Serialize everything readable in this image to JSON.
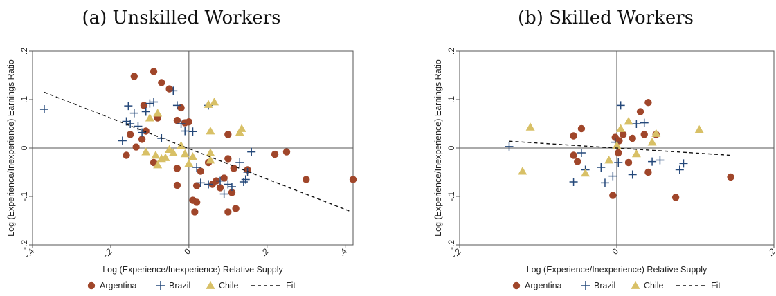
{
  "colors": {
    "argentina": "#a0462a",
    "brazil": "#24487a",
    "chile": "#d8c066",
    "fit": "#111111",
    "axis": "#555555"
  },
  "chart_data": [
    {
      "type": "scatter",
      "title": "(a) Unskilled Workers",
      "xlabel": "Log (Experience/Inexperience) Relative Supply",
      "ylabel": "Log (Experience/Inexperience) Earnings Ratio",
      "xlim": [
        -0.4,
        0.42
      ],
      "ylim": [
        -0.2,
        0.2
      ],
      "xticks": [
        -0.4,
        -0.2,
        0,
        0.2,
        0.4
      ],
      "xtick_labels": [
        "-.4",
        "-.2",
        "0",
        ".2",
        ".4"
      ],
      "yticks": [
        -0.2,
        -0.1,
        0,
        0.1,
        0.2
      ],
      "ytick_labels": [
        "-.2",
        "-.1",
        "0",
        ".1",
        ".2"
      ],
      "grid": false,
      "legend_position": "bottom",
      "series": [
        {
          "name": "Argentina",
          "marker": "circle",
          "points": [
            [
              -0.16,
              -0.015
            ],
            [
              -0.15,
              0.028
            ],
            [
              -0.14,
              0.148
            ],
            [
              -0.135,
              0.002
            ],
            [
              -0.12,
              0.018
            ],
            [
              -0.115,
              0.088
            ],
            [
              -0.11,
              0.035
            ],
            [
              -0.09,
              0.158
            ],
            [
              -0.09,
              -0.03
            ],
            [
              -0.08,
              0.062
            ],
            [
              -0.07,
              0.135
            ],
            [
              -0.05,
              0.122
            ],
            [
              -0.03,
              0.057
            ],
            [
              -0.03,
              -0.042
            ],
            [
              -0.03,
              -0.077
            ],
            [
              -0.02,
              0.083
            ],
            [
              -0.01,
              0.052
            ],
            [
              0,
              0.054
            ],
            [
              0.01,
              -0.108
            ],
            [
              0.015,
              -0.132
            ],
            [
              0.02,
              -0.112
            ],
            [
              0.02,
              -0.078
            ],
            [
              0.03,
              -0.048
            ],
            [
              0.05,
              -0.03
            ],
            [
              0.06,
              -0.075
            ],
            [
              0.07,
              -0.068
            ],
            [
              0.08,
              -0.082
            ],
            [
              0.09,
              -0.062
            ],
            [
              0.1,
              -0.132
            ],
            [
              0.1,
              -0.022
            ],
            [
              0.1,
              0.028
            ],
            [
              0.11,
              -0.092
            ],
            [
              0.115,
              -0.042
            ],
            [
              0.12,
              -0.125
            ],
            [
              0.15,
              -0.045
            ],
            [
              0.22,
              -0.013
            ],
            [
              0.25,
              -0.008
            ],
            [
              0.3,
              -0.065
            ],
            [
              0.42,
              -0.065
            ]
          ]
        },
        {
          "name": "Brazil",
          "marker": "plus",
          "points": [
            [
              -0.37,
              0.08
            ],
            [
              -0.17,
              0.015
            ],
            [
              -0.16,
              0.055
            ],
            [
              -0.155,
              0.087
            ],
            [
              -0.15,
              0.05
            ],
            [
              -0.14,
              0.072
            ],
            [
              -0.13,
              0.045
            ],
            [
              -0.12,
              0.032
            ],
            [
              -0.11,
              0.075
            ],
            [
              -0.1,
              0.092
            ],
            [
              -0.09,
              0.095
            ],
            [
              -0.07,
              0.02
            ],
            [
              -0.04,
              0.118
            ],
            [
              -0.03,
              0.088
            ],
            [
              -0.02,
              0.05
            ],
            [
              -0.01,
              0.035
            ],
            [
              0.01,
              0.034
            ],
            [
              0.02,
              -0.04
            ],
            [
              0.03,
              -0.072
            ],
            [
              0.05,
              -0.075
            ],
            [
              0.08,
              -0.068
            ],
            [
              0.09,
              -0.095
            ],
            [
              0.1,
              -0.075
            ],
            [
              0.11,
              -0.08
            ],
            [
              0.13,
              -0.03
            ],
            [
              0.14,
              -0.07
            ],
            [
              0.145,
              -0.065
            ],
            [
              0.15,
              -0.05
            ],
            [
              0.16,
              -0.008
            ],
            [
              0.05,
              0.088
            ]
          ]
        },
        {
          "name": "Chile",
          "marker": "triangle",
          "points": [
            [
              -0.11,
              -0.008
            ],
            [
              -0.1,
              0.062
            ],
            [
              -0.085,
              -0.015
            ],
            [
              -0.08,
              0.072
            ],
            [
              -0.08,
              -0.035
            ],
            [
              -0.07,
              -0.022
            ],
            [
              -0.06,
              -0.02
            ],
            [
              -0.05,
              -0.003
            ],
            [
              -0.04,
              -0.01
            ],
            [
              -0.02,
              0.005
            ],
            [
              -0.01,
              -0.012
            ],
            [
              0,
              -0.032
            ],
            [
              0.01,
              -0.018
            ],
            [
              0.05,
              0.09
            ],
            [
              0.055,
              -0.01
            ],
            [
              0.055,
              -0.025
            ],
            [
              0.055,
              0.035
            ],
            [
              0.065,
              0.095
            ],
            [
              0.13,
              0.032
            ],
            [
              0.135,
              0.04
            ]
          ]
        }
      ],
      "fit": {
        "name": "Fit",
        "style": "dashed",
        "x": [
          -0.37,
          0.41
        ],
        "y": [
          0.115,
          -0.13
        ]
      }
    },
    {
      "type": "scatter",
      "title": "(b) Skilled Workers",
      "xlabel": "Log (Experience/Inexperience) Relative Supply",
      "ylabel": "Log (Experience/Inexperience) Earnings Ratio",
      "xlim": [
        -0.2,
        0.2
      ],
      "ylim": [
        -0.2,
        0.2
      ],
      "xticks": [
        -0.2,
        0,
        0.2
      ],
      "xtick_labels": [
        "-.2",
        "0",
        ".2"
      ],
      "yticks": [
        -0.2,
        -0.1,
        0,
        0.1,
        0.2
      ],
      "ytick_labels": [
        "-.2",
        "-.1",
        "0",
        ".1",
        ".2"
      ],
      "grid": false,
      "legend_position": "bottom",
      "series": [
        {
          "name": "Argentina",
          "marker": "circle",
          "points": [
            [
              -0.055,
              0.025
            ],
            [
              -0.055,
              -0.015
            ],
            [
              -0.05,
              -0.028
            ],
            [
              -0.045,
              0.04
            ],
            [
              -0.005,
              -0.098
            ],
            [
              -0.002,
              0.022
            ],
            [
              0.002,
              -0.01
            ],
            [
              0.003,
              0.015
            ],
            [
              0.008,
              0.028
            ],
            [
              0.015,
              -0.03
            ],
            [
              0.02,
              0.02
            ],
            [
              0.03,
              0.075
            ],
            [
              0.035,
              0.028
            ],
            [
              0.04,
              0.094
            ],
            [
              0.04,
              -0.05
            ],
            [
              0.05,
              0.028
            ],
            [
              0.075,
              -0.102
            ],
            [
              0.145,
              -0.06
            ]
          ]
        },
        {
          "name": "Brazil",
          "marker": "plus",
          "points": [
            [
              -0.137,
              0.003
            ],
            [
              -0.055,
              -0.07
            ],
            [
              -0.045,
              -0.01
            ],
            [
              -0.04,
              -0.045
            ],
            [
              -0.02,
              -0.04
            ],
            [
              -0.015,
              -0.072
            ],
            [
              -0.005,
              -0.058
            ],
            [
              -0.002,
              0.012
            ],
            [
              0.002,
              -0.03
            ],
            [
              0.005,
              0.088
            ],
            [
              0.02,
              -0.055
            ],
            [
              0.025,
              0.05
            ],
            [
              0.035,
              0.052
            ],
            [
              0.045,
              -0.028
            ],
            [
              0.055,
              -0.025
            ],
            [
              0.08,
              -0.045
            ],
            [
              0.085,
              -0.032
            ]
          ]
        },
        {
          "name": "Chile",
          "marker": "triangle",
          "points": [
            [
              -0.12,
              -0.048
            ],
            [
              -0.11,
              0.043
            ],
            [
              -0.04,
              -0.052
            ],
            [
              -0.01,
              -0.025
            ],
            [
              0,
              0.005
            ],
            [
              0.005,
              0.04
            ],
            [
              0.015,
              0.055
            ],
            [
              0.025,
              -0.012
            ],
            [
              0.045,
              0.012
            ],
            [
              0.05,
              0.03
            ],
            [
              0.105,
              0.038
            ]
          ]
        }
      ],
      "fit": {
        "name": "Fit",
        "style": "dashed",
        "x": [
          -0.137,
          0.145
        ],
        "y": [
          0.014,
          -0.015
        ]
      }
    }
  ]
}
